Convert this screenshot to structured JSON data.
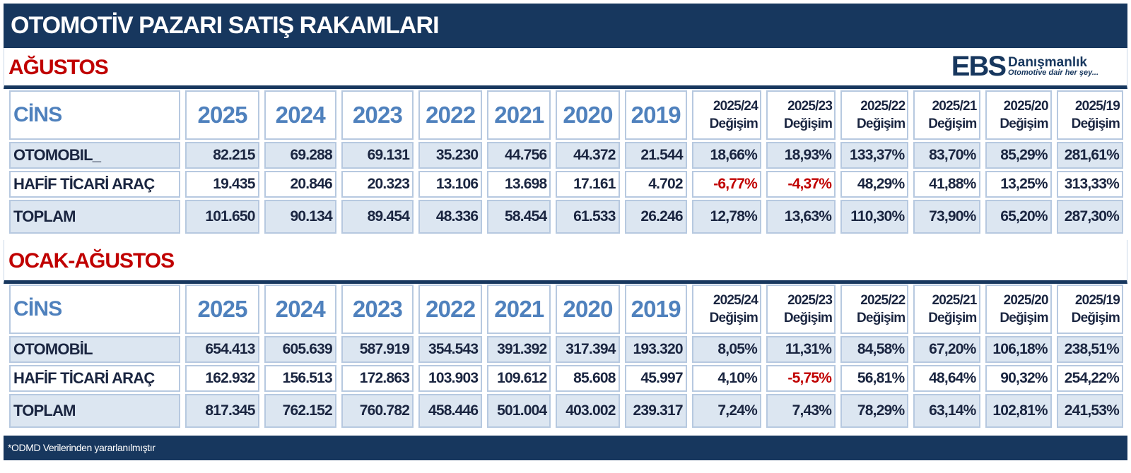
{
  "title": "OTOMOTİV PAZARI SATIŞ RAKAMLARI",
  "logo": {
    "mark": "EBS",
    "name": "Danışmanlık",
    "slogan": "Otomotive dair her şey..."
  },
  "colors": {
    "header_bg": "#17375e",
    "section_title": "#c00000",
    "year_header": "#4f81bd",
    "row_shade": "#dce6f1",
    "negative": "#c00000"
  },
  "columns": [
    "CİNS",
    "2025",
    "2024",
    "2023",
    "2022",
    "2021",
    "2020",
    "2019",
    [
      "2025/24",
      "Değişim"
    ],
    [
      "2025/23",
      "Değişim"
    ],
    [
      "2025/22",
      "Değişim"
    ],
    [
      "2025/21",
      "Değişim"
    ],
    [
      "2025/20",
      "Değişim"
    ],
    [
      "2025/19",
      "Değişim"
    ]
  ],
  "sections": [
    {
      "title": "AĞUSTOS",
      "rows": [
        {
          "label": "OTOMOBIL_",
          "cells": [
            "82.215",
            "69.288",
            "69.131",
            "35.230",
            "44.756",
            "44.372",
            "21.544",
            "18,66%",
            "18,93%",
            "133,37%",
            "83,70%",
            "85,29%",
            "281,61%"
          ]
        },
        {
          "label": "HAFİF TİCARİ ARAÇ",
          "cells": [
            "19.435",
            "20.846",
            "20.323",
            "13.106",
            "13.698",
            "17.161",
            "4.702",
            "-6,77%",
            "-4,37%",
            "48,29%",
            "41,88%",
            "13,25%",
            "313,33%"
          ]
        },
        {
          "label": "TOPLAM",
          "cells": [
            "101.650",
            "90.134",
            "89.454",
            "48.336",
            "58.454",
            "61.533",
            "26.246",
            "12,78%",
            "13,63%",
            "110,30%",
            "73,90%",
            "65,20%",
            "287,30%"
          ]
        }
      ]
    },
    {
      "title": "OCAK-AĞUSTOS",
      "rows": [
        {
          "label": "OTOMOBİL",
          "cells": [
            "654.413",
            "605.639",
            "587.919",
            "354.543",
            "391.392",
            "317.394",
            "193.320",
            "8,05%",
            "11,31%",
            "84,58%",
            "67,20%",
            "106,18%",
            "238,51%"
          ]
        },
        {
          "label": "HAFİF TİCARİ ARAÇ",
          "cells": [
            "162.932",
            "156.513",
            "172.863",
            "103.903",
            "109.612",
            "85.608",
            "45.997",
            "4,10%",
            "-5,75%",
            "56,81%",
            "48,64%",
            "90,32%",
            "254,22%"
          ]
        },
        {
          "label": "TOPLAM",
          "cells": [
            "817.345",
            "762.152",
            "760.782",
            "458.446",
            "501.004",
            "403.002",
            "239.317",
            "7,24%",
            "7,43%",
            "78,29%",
            "63,14%",
            "102,81%",
            "241,53%"
          ]
        }
      ]
    }
  ],
  "footer": "*ODMD Verilerinden yararlanılmıştır"
}
